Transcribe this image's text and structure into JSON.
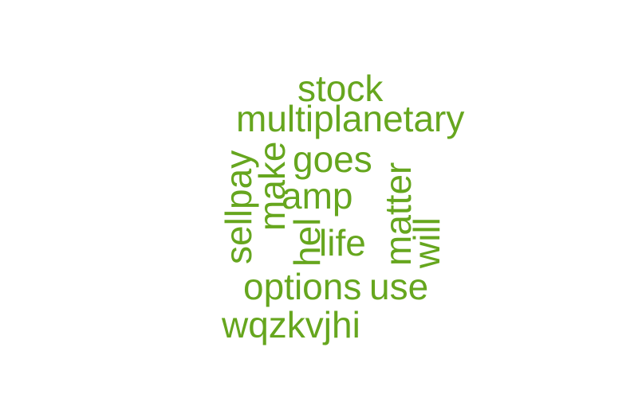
{
  "cloud": {
    "color": "#66a61e",
    "words": [
      {
        "text": "stock",
        "orientation": "horizontal"
      },
      {
        "text": "multiplanetary",
        "orientation": "horizontal"
      },
      {
        "text": "goes",
        "orientation": "horizontal"
      },
      {
        "text": "amp",
        "orientation": "horizontal"
      },
      {
        "text": "life",
        "orientation": "horizontal"
      },
      {
        "text": "options",
        "orientation": "horizontal"
      },
      {
        "text": "use",
        "orientation": "horizontal"
      },
      {
        "text": "wqzkvjhi",
        "orientation": "horizontal"
      },
      {
        "text": "sellpay",
        "orientation": "vertical"
      },
      {
        "text": "make",
        "orientation": "vertical"
      },
      {
        "text": "hel",
        "orientation": "vertical"
      },
      {
        "text": "matter",
        "orientation": "vertical"
      },
      {
        "text": "will",
        "orientation": "vertical"
      }
    ]
  }
}
